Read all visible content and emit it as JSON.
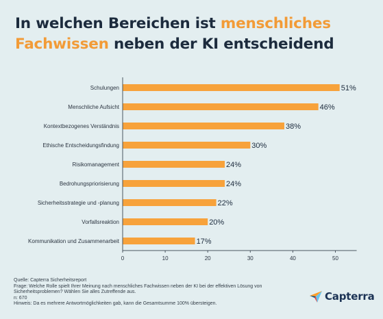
{
  "title": {
    "part1": "In welchen Bereichen ist ",
    "highlight1": "menschliches",
    "highlight2": "Fachwissen",
    "part2": " neben der KI entscheidend"
  },
  "chart_data": {
    "type": "bar",
    "orientation": "horizontal",
    "categories": [
      "Schulungen",
      "Menschliche Aufsicht",
      "Kontextbezogenes Verständnis",
      "Ethische Entscheidungsfindung",
      "Risikomanagement",
      "Bedrohungspriorisierung",
      "Sicherheitsstrategie und -planung",
      "Vorfallsreaktion",
      "Kommunikation und Zusammenarbeit"
    ],
    "values": [
      51,
      46,
      38,
      30,
      24,
      24,
      22,
      20,
      17
    ],
    "value_labels": [
      "51%",
      "46%",
      "38%",
      "30%",
      "24%",
      "24%",
      "22%",
      "20%",
      "17%"
    ],
    "xlim": [
      0,
      55
    ],
    "xticks": [
      0,
      10,
      20,
      30,
      40,
      50
    ],
    "xtick_labels": [
      "0",
      "10",
      "20",
      "30",
      "40",
      "50"
    ],
    "grid": false,
    "bar_color": "#f7a23b"
  },
  "footer": {
    "source": "Quelle: Capterra Sicherheitsreport",
    "question": "Frage: Welche Rolle spielt Ihrer Meinung nach menschliches Fachwissen neben der KI bei der effektiven Lösung von Sicherheitsproblemen? Wählen Sie alles Zutreffende aus.",
    "n": "n: 670",
    "note": "Hinweis: Da es mehrere Antwortmöglichkeiten gab, kann die Gesamtsumme 100% übersteigen."
  },
  "logo": {
    "text": "Capterra",
    "icon": "capterra-arrow-icon"
  },
  "colors": {
    "accent": "#f29b37",
    "title": "#1c2b3d",
    "background": "#e3eef0"
  }
}
